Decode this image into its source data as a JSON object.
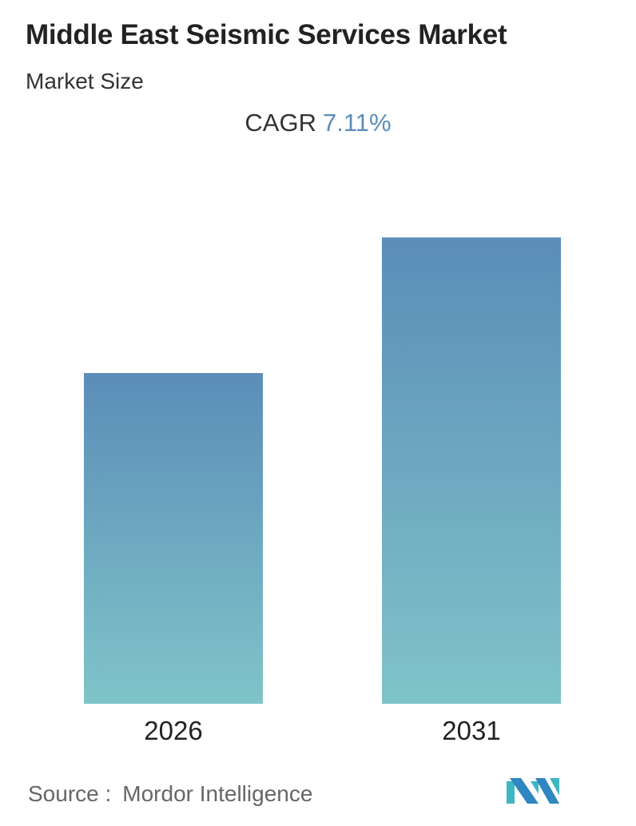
{
  "header": {
    "title": "Middle East Seismic Services Market",
    "subtitle": "Market Size",
    "cagr_label": "CAGR",
    "cagr_value": "7.11%"
  },
  "chart_data": {
    "type": "bar",
    "categories": [
      "2026",
      "2031"
    ],
    "values": [
      1.0,
      1.41
    ],
    "xlabel": "",
    "ylabel": "",
    "ylim": [
      0,
      1.6
    ],
    "grid": false,
    "bar_color_top": "#5b8db8",
    "bar_color_bottom": "#7fc4c9"
  },
  "footer": {
    "source_label": "Source :",
    "source_name": "Mordor Intelligence",
    "logo_text": "Mordor Intelligence logo"
  }
}
